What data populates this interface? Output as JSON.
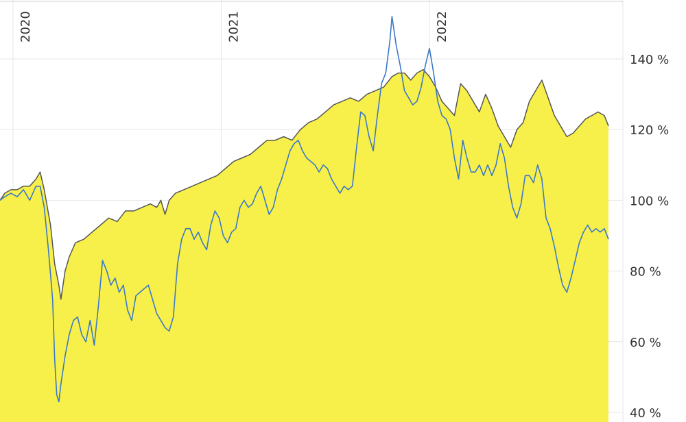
{
  "chart_data": {
    "type": "area",
    "x_labels": [
      "2020",
      "2021",
      "2022"
    ],
    "y_ticks": [
      {
        "value": 140,
        "label": "140 %"
      },
      {
        "value": 120,
        "label": "120 %"
      },
      {
        "value": 100,
        "label": "100 %"
      },
      {
        "value": 80,
        "label": "80 %"
      },
      {
        "value": 60,
        "label": "60 %"
      },
      {
        "value": 40,
        "label": "40 %"
      }
    ],
    "ylim": [
      40,
      156
    ],
    "xlim": [
      2019.93,
      2022.86
    ],
    "grid": true,
    "colors": {
      "area_fill": "#f8f04a",
      "area_line": "#555555",
      "series_line": "#3b78c8",
      "grid": "#e6e6e6",
      "background": "#ffffff"
    },
    "series": [
      {
        "values": [
          [
            2019.93,
            100
          ],
          [
            2019.96,
            102
          ],
          [
            2019.99,
            103
          ],
          [
            2020.02,
            103
          ],
          [
            2020.05,
            104
          ],
          [
            2020.08,
            104
          ],
          [
            2020.11,
            106
          ],
          [
            2020.13,
            108
          ],
          [
            2020.15,
            103
          ],
          [
            2020.18,
            93
          ],
          [
            2020.2,
            82
          ],
          [
            2020.22,
            76
          ],
          [
            2020.23,
            72
          ],
          [
            2020.25,
            80
          ],
          [
            2020.27,
            84
          ],
          [
            2020.3,
            88
          ],
          [
            2020.34,
            89
          ],
          [
            2020.38,
            91
          ],
          [
            2020.42,
            93
          ],
          [
            2020.46,
            95
          ],
          [
            2020.5,
            94
          ],
          [
            2020.54,
            97
          ],
          [
            2020.58,
            97
          ],
          [
            2020.62,
            98
          ],
          [
            2020.66,
            99
          ],
          [
            2020.69,
            98
          ],
          [
            2020.71,
            100
          ],
          [
            2020.73,
            96
          ],
          [
            2020.75,
            100
          ],
          [
            2020.78,
            102
          ],
          [
            2020.82,
            103
          ],
          [
            2020.86,
            104
          ],
          [
            2020.9,
            105
          ],
          [
            2020.94,
            106
          ],
          [
            2020.98,
            107
          ],
          [
            2021.02,
            109
          ],
          [
            2021.06,
            111
          ],
          [
            2021.1,
            112
          ],
          [
            2021.14,
            113
          ],
          [
            2021.18,
            115
          ],
          [
            2021.22,
            117
          ],
          [
            2021.26,
            117
          ],
          [
            2021.3,
            118
          ],
          [
            2021.34,
            117
          ],
          [
            2021.38,
            120
          ],
          [
            2021.42,
            122
          ],
          [
            2021.46,
            123
          ],
          [
            2021.5,
            125
          ],
          [
            2021.54,
            127
          ],
          [
            2021.58,
            128
          ],
          [
            2021.62,
            129
          ],
          [
            2021.66,
            128
          ],
          [
            2021.7,
            130
          ],
          [
            2021.74,
            131
          ],
          [
            2021.78,
            132
          ],
          [
            2021.82,
            135
          ],
          [
            2021.85,
            136
          ],
          [
            2021.88,
            136
          ],
          [
            2021.91,
            134
          ],
          [
            2021.94,
            136
          ],
          [
            2021.97,
            137
          ],
          [
            2022.0,
            135
          ],
          [
            2022.03,
            132
          ],
          [
            2022.06,
            128
          ],
          [
            2022.09,
            126
          ],
          [
            2022.12,
            124
          ],
          [
            2022.15,
            133
          ],
          [
            2022.18,
            131
          ],
          [
            2022.21,
            128
          ],
          [
            2022.24,
            125
          ],
          [
            2022.27,
            130
          ],
          [
            2022.3,
            126
          ],
          [
            2022.33,
            121
          ],
          [
            2022.36,
            118
          ],
          [
            2022.39,
            115
          ],
          [
            2022.42,
            120
          ],
          [
            2022.45,
            122
          ],
          [
            2022.48,
            128
          ],
          [
            2022.51,
            131
          ],
          [
            2022.54,
            134
          ],
          [
            2022.57,
            129
          ],
          [
            2022.6,
            124
          ],
          [
            2022.63,
            121
          ],
          [
            2022.66,
            118
          ],
          [
            2022.69,
            119
          ],
          [
            2022.72,
            121
          ],
          [
            2022.75,
            123
          ],
          [
            2022.78,
            124
          ],
          [
            2022.81,
            125
          ],
          [
            2022.84,
            124
          ],
          [
            2022.86,
            121
          ]
        ]
      },
      {
        "values": [
          [
            2019.93,
            100
          ],
          [
            2019.96,
            101
          ],
          [
            2019.99,
            102
          ],
          [
            2020.02,
            101
          ],
          [
            2020.05,
            103
          ],
          [
            2020.08,
            100
          ],
          [
            2020.11,
            104
          ],
          [
            2020.13,
            104
          ],
          [
            2020.15,
            98
          ],
          [
            2020.17,
            86
          ],
          [
            2020.19,
            72
          ],
          [
            2020.2,
            55
          ],
          [
            2020.21,
            45
          ],
          [
            2020.22,
            43
          ],
          [
            2020.23,
            48
          ],
          [
            2020.25,
            56
          ],
          [
            2020.27,
            62
          ],
          [
            2020.29,
            66
          ],
          [
            2020.31,
            67
          ],
          [
            2020.33,
            62
          ],
          [
            2020.35,
            60
          ],
          [
            2020.37,
            66
          ],
          [
            2020.39,
            59
          ],
          [
            2020.41,
            70
          ],
          [
            2020.43,
            83
          ],
          [
            2020.45,
            80
          ],
          [
            2020.47,
            76
          ],
          [
            2020.49,
            78
          ],
          [
            2020.51,
            74
          ],
          [
            2020.53,
            76
          ],
          [
            2020.55,
            69
          ],
          [
            2020.57,
            66
          ],
          [
            2020.59,
            73
          ],
          [
            2020.61,
            74
          ],
          [
            2020.63,
            75
          ],
          [
            2020.65,
            76
          ],
          [
            2020.67,
            72
          ],
          [
            2020.69,
            68
          ],
          [
            2020.71,
            66
          ],
          [
            2020.73,
            64
          ],
          [
            2020.75,
            63
          ],
          [
            2020.77,
            67
          ],
          [
            2020.79,
            82
          ],
          [
            2020.81,
            89
          ],
          [
            2020.83,
            92
          ],
          [
            2020.85,
            92
          ],
          [
            2020.87,
            89
          ],
          [
            2020.89,
            91
          ],
          [
            2020.91,
            88
          ],
          [
            2020.93,
            86
          ],
          [
            2020.95,
            93
          ],
          [
            2020.97,
            97
          ],
          [
            2020.99,
            95
          ],
          [
            2021.01,
            90
          ],
          [
            2021.03,
            88
          ],
          [
            2021.05,
            91
          ],
          [
            2021.07,
            92
          ],
          [
            2021.09,
            98
          ],
          [
            2021.11,
            100
          ],
          [
            2021.13,
            98
          ],
          [
            2021.15,
            99
          ],
          [
            2021.17,
            102
          ],
          [
            2021.19,
            104
          ],
          [
            2021.21,
            100
          ],
          [
            2021.23,
            96
          ],
          [
            2021.25,
            98
          ],
          [
            2021.27,
            103
          ],
          [
            2021.29,
            106
          ],
          [
            2021.31,
            110
          ],
          [
            2021.33,
            114
          ],
          [
            2021.35,
            116
          ],
          [
            2021.37,
            117
          ],
          [
            2021.39,
            114
          ],
          [
            2021.41,
            112
          ],
          [
            2021.43,
            111
          ],
          [
            2021.45,
            110
          ],
          [
            2021.47,
            108
          ],
          [
            2021.49,
            110
          ],
          [
            2021.51,
            109
          ],
          [
            2021.53,
            106
          ],
          [
            2021.55,
            104
          ],
          [
            2021.57,
            102
          ],
          [
            2021.59,
            104
          ],
          [
            2021.61,
            103
          ],
          [
            2021.63,
            104
          ],
          [
            2021.65,
            115
          ],
          [
            2021.67,
            125
          ],
          [
            2021.69,
            124
          ],
          [
            2021.71,
            118
          ],
          [
            2021.73,
            114
          ],
          [
            2021.75,
            124
          ],
          [
            2021.77,
            133
          ],
          [
            2021.79,
            136
          ],
          [
            2021.81,
            145
          ],
          [
            2021.82,
            152
          ],
          [
            2021.84,
            144
          ],
          [
            2021.86,
            138
          ],
          [
            2021.88,
            131
          ],
          [
            2021.9,
            129
          ],
          [
            2021.92,
            127
          ],
          [
            2021.94,
            128
          ],
          [
            2021.96,
            132
          ],
          [
            2021.98,
            138
          ],
          [
            2022.0,
            143
          ],
          [
            2022.02,
            136
          ],
          [
            2022.04,
            128
          ],
          [
            2022.06,
            124
          ],
          [
            2022.08,
            123
          ],
          [
            2022.1,
            120
          ],
          [
            2022.12,
            112
          ],
          [
            2022.14,
            106
          ],
          [
            2022.16,
            117
          ],
          [
            2022.18,
            112
          ],
          [
            2022.2,
            108
          ],
          [
            2022.22,
            108
          ],
          [
            2022.24,
            110
          ],
          [
            2022.26,
            107
          ],
          [
            2022.28,
            110
          ],
          [
            2022.3,
            107
          ],
          [
            2022.32,
            110
          ],
          [
            2022.34,
            116
          ],
          [
            2022.36,
            112
          ],
          [
            2022.38,
            104
          ],
          [
            2022.4,
            98
          ],
          [
            2022.42,
            95
          ],
          [
            2022.44,
            99
          ],
          [
            2022.46,
            107
          ],
          [
            2022.48,
            107
          ],
          [
            2022.5,
            105
          ],
          [
            2022.52,
            110
          ],
          [
            2022.54,
            106
          ],
          [
            2022.56,
            95
          ],
          [
            2022.58,
            92
          ],
          [
            2022.6,
            87
          ],
          [
            2022.62,
            81
          ],
          [
            2022.64,
            76
          ],
          [
            2022.66,
            74
          ],
          [
            2022.68,
            78
          ],
          [
            2022.7,
            83
          ],
          [
            2022.72,
            88
          ],
          [
            2022.74,
            91
          ],
          [
            2022.76,
            93
          ],
          [
            2022.78,
            91
          ],
          [
            2022.8,
            92
          ],
          [
            2022.82,
            91
          ],
          [
            2022.84,
            92
          ],
          [
            2022.86,
            89
          ]
        ]
      }
    ]
  }
}
